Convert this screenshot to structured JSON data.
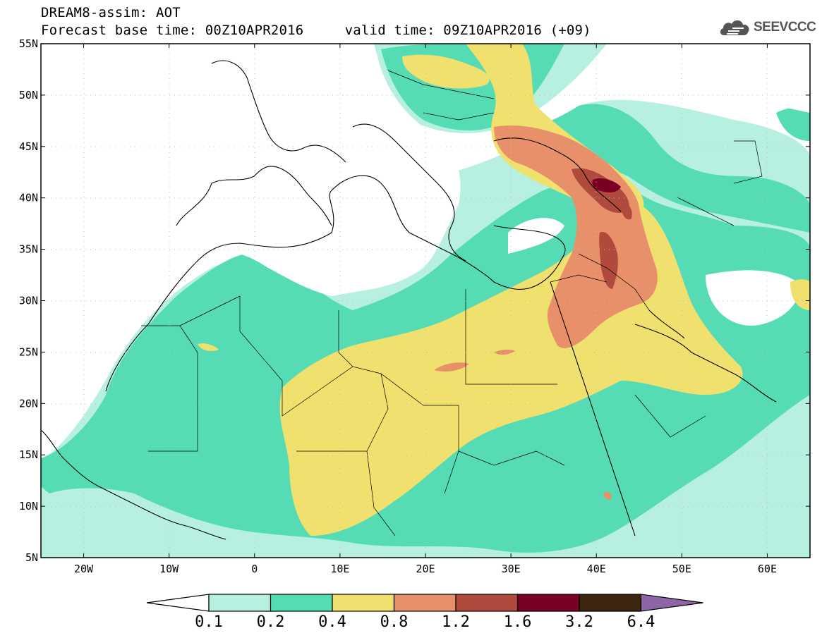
{
  "header": {
    "title_line1": "DREAM8-assim: AOT",
    "title_line2": "Forecast base time: 00Z10APR2016     valid time: 09Z10APR2016 (+09)",
    "brand": "SEEVCCC"
  },
  "map": {
    "variable": "AOT",
    "lon_range": [
      -25,
      65
    ],
    "lat_range": [
      5,
      55
    ],
    "lat_ticks": [
      "55N",
      "50N",
      "45N",
      "40N",
      "35N",
      "30N",
      "25N",
      "20N",
      "15N",
      "10N",
      "5N"
    ],
    "lon_ticks": [
      "20W",
      "10W",
      "0",
      "10E",
      "20E",
      "30E",
      "40E",
      "50E",
      "60E"
    ]
  },
  "colorbar": {
    "labels": [
      "0.1",
      "0.2",
      "0.4",
      "0.8",
      "1.2",
      "1.6",
      "3.2",
      "6.4"
    ],
    "colors": [
      "#b7f0e0",
      "#55dcb4",
      "#f0e06e",
      "#e8906a",
      "#b04a3c",
      "#7a0024",
      "#3c2612",
      "#8e66a8"
    ],
    "low_extend_color": "#ffffff",
    "high_extend_color": "#8e66a8"
  },
  "legend_colors": {
    "land_outline": "#000000",
    "grid_dots": "#bbbbbb"
  }
}
